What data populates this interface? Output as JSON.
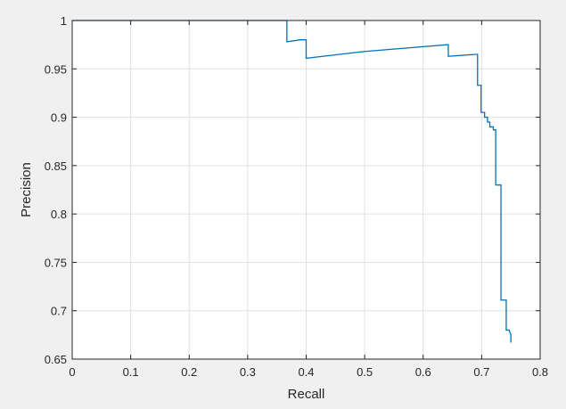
{
  "chart_data": {
    "type": "line",
    "title": "",
    "xlabel": "Recall",
    "ylabel": "Precision",
    "xlim": [
      0,
      0.8
    ],
    "ylim": [
      0.65,
      1
    ],
    "xticks": [
      0,
      0.1,
      0.2,
      0.3,
      0.4,
      0.5,
      0.6,
      0.7,
      0.8
    ],
    "xtick_labels": [
      "0",
      "0.1",
      "0.2",
      "0.3",
      "0.4",
      "0.5",
      "0.6",
      "0.7",
      "0.8"
    ],
    "yticks": [
      0.65,
      0.7,
      0.75,
      0.8,
      0.85,
      0.9,
      0.95,
      1
    ],
    "ytick_labels": [
      "0.65",
      "0.7",
      "0.75",
      "0.8",
      "0.85",
      "0.9",
      "0.95",
      "1"
    ],
    "grid": true,
    "legend": "none",
    "series": [
      {
        "color": "#0072bd",
        "x": [
          0,
          0.367,
          0.367,
          0.39,
          0.4,
          0.4,
          0.5,
          0.643,
          0.643,
          0.69,
          0.693,
          0.693,
          0.699,
          0.699,
          0.705,
          0.705,
          0.71,
          0.71,
          0.714,
          0.714,
          0.72,
          0.72,
          0.724,
          0.724,
          0.73,
          0.73,
          0.733,
          0.733,
          0.739,
          0.739,
          0.742,
          0.742,
          0.747,
          0.75,
          0.75
        ],
        "y": [
          1,
          1,
          0.978,
          0.98,
          0.98,
          0.961,
          0.968,
          0.975,
          0.963,
          0.965,
          0.965,
          0.933,
          0.933,
          0.905,
          0.905,
          0.9,
          0.9,
          0.895,
          0.895,
          0.89,
          0.89,
          0.887,
          0.887,
          0.83,
          0.83,
          0.83,
          0.83,
          0.711,
          0.711,
          0.711,
          0.711,
          0.68,
          0.68,
          0.675,
          0.667
        ]
      }
    ]
  }
}
